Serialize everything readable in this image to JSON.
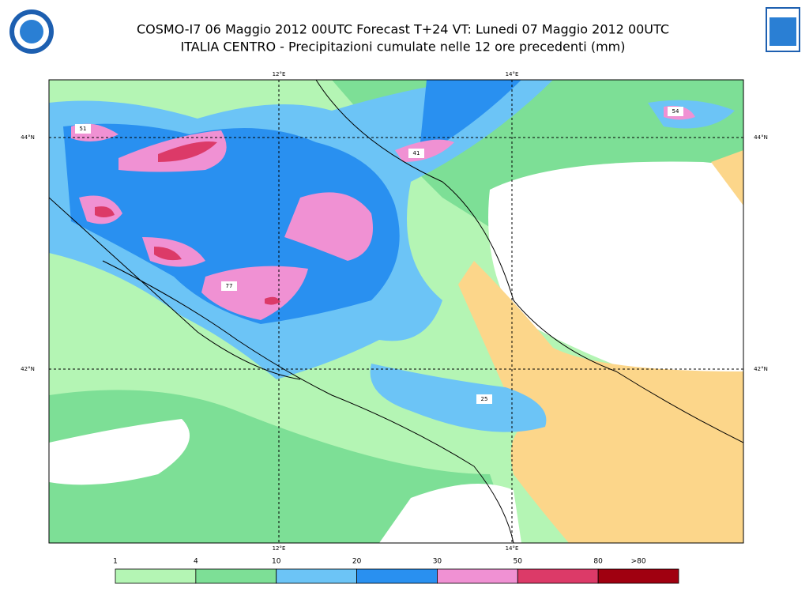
{
  "header": {
    "title_line1": "COSMO-I7 06 Maggio 2012 00UTC Forecast T+24 VT: Lunedi 07 Maggio 2012 00UTC",
    "title_line2": "ITALIA CENTRO - Precipitazioni cumulate nelle 12 ore precedenti (mm)"
  },
  "map": {
    "lon_lines": [
      {
        "value": 12,
        "label": "12°E"
      },
      {
        "value": 14,
        "label": "14°E"
      }
    ],
    "lat_lines": [
      {
        "value": 44,
        "label": "44°N"
      },
      {
        "value": 42,
        "label": "42°N"
      }
    ],
    "maxima": [
      51,
      41,
      54,
      77,
      25
    ]
  },
  "legend": {
    "ticks": [
      1,
      4,
      10,
      20,
      30,
      50,
      80
    ],
    "over_label": ">80",
    "colors": [
      "#b4f5b4",
      "#7ddf96",
      "#6cc4f6",
      "#2990f0",
      "#f091d3",
      "#dc3a68",
      "#a00010"
    ]
  }
}
